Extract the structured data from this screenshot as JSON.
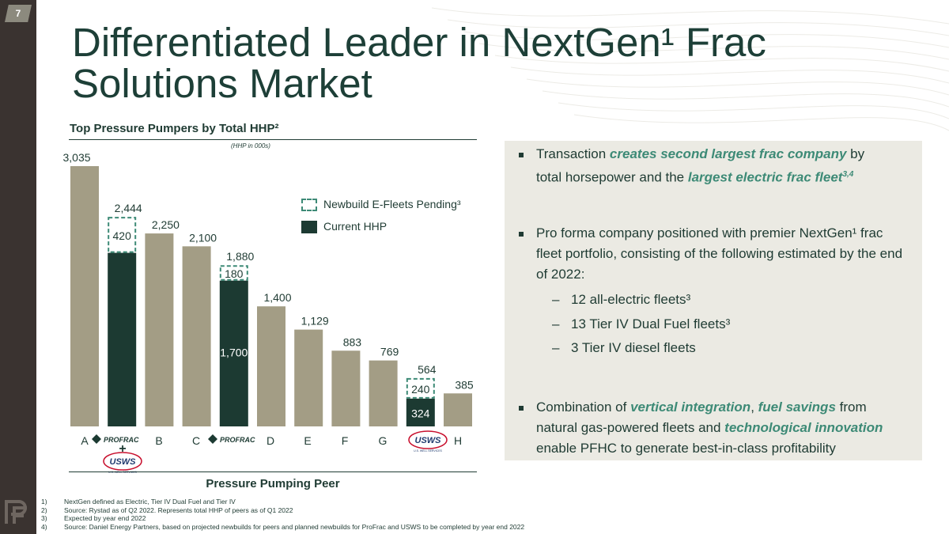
{
  "page": {
    "number": "7"
  },
  "title": {
    "line1": "Differentiated Leader in NextGen¹ Frac",
    "line2": "Solutions Market"
  },
  "chart_heading": "Top Pressure Pumpers by Total HHP²",
  "chart_unit": "(HHP in 000s)",
  "x_title": "Pressure Pumping Peer",
  "legend": {
    "pending": "Newbuild E-Fleets Pending³",
    "current": "Current HHP"
  },
  "colors": {
    "dark_green": "#1c3a32",
    "taupe": "#a39d85",
    "accent_green": "#3d8a76",
    "panel": "#ebeae3",
    "sidebar": "#3a3330"
  },
  "chart_data": {
    "type": "bar",
    "stacked": true,
    "categories": [
      "A",
      "ProFrac + USWS",
      "B",
      "C",
      "ProFrac",
      "D",
      "E",
      "F",
      "G",
      "USWS",
      "H"
    ],
    "totals": [
      "3,035",
      "2,444",
      "2,250",
      "2,100",
      "1,880",
      "1,400",
      "1,129",
      "883",
      "769",
      "564",
      "385"
    ],
    "series": [
      {
        "name": "Current HHP",
        "values": [
          3035,
          2024,
          2250,
          2100,
          1700,
          1400,
          1129,
          883,
          769,
          324,
          385
        ]
      },
      {
        "name": "Newbuild E-Fleets Pending³",
        "values": [
          0,
          420,
          0,
          0,
          180,
          0,
          0,
          0,
          0,
          240,
          0
        ]
      }
    ],
    "segment_labels": {
      "current_profrac": "1,700",
      "current_usws": "324",
      "pending_combined": "420",
      "pending_profrac": "180",
      "pending_usws": "240"
    },
    "highlighted": [
      "ProFrac + USWS",
      "ProFrac",
      "USWS"
    ],
    "ylim": [
      0,
      3100
    ],
    "x_labels": [
      "A",
      "B",
      "C",
      "D",
      "E",
      "F",
      "G",
      "H"
    ],
    "logos": {
      "profrac": "PROFRAC",
      "usws": "USWS",
      "usws_sub": "U.S. WELL SERVICES",
      "plus": "+"
    }
  },
  "panel": {
    "b1": {
      "t1": "Transaction ",
      "e1": "creates second largest frac company",
      "t2": " by",
      "t3": "total horsepower and the ",
      "e2": "largest electric frac fleet",
      "sup": "3,4"
    },
    "b2": {
      "line1": "Pro forma company positioned with premier NextGen¹ frac",
      "line2": "fleet portfolio, consisting of the following estimated by the end",
      "line3": "of 2022:"
    },
    "subs": [
      "12 all-electric fleets³",
      "13 Tier IV Dual Fuel fleets³",
      "3 Tier IV diesel fleets"
    ],
    "dash": "–",
    "b3": {
      "e1": "vertical integration",
      "t1": ", ",
      "e2": "fuel savings",
      "t2": " from",
      "t3": "natural gas-powered fleets and ",
      "e3": "technological innovation",
      "t4": "enable PFHC to generate best-in-class profitability"
    }
  },
  "footnotes": [
    {
      "n": "1)",
      "text": "NextGen defined as Electric, Tier IV Dual Fuel and Tier IV"
    },
    {
      "n": "2)",
      "text": "Source: Rystad as of Q2 2022.  Represents total HHP of peers as of Q1 2022"
    },
    {
      "n": "3)",
      "text": "Expected by year end 2022"
    },
    {
      "n": "4)",
      "text": "Source: Daniel Energy Partners, based on projected newbuilds for peers and planned newbuilds for ProFrac and USWS to be completed by year end 2022"
    }
  ]
}
